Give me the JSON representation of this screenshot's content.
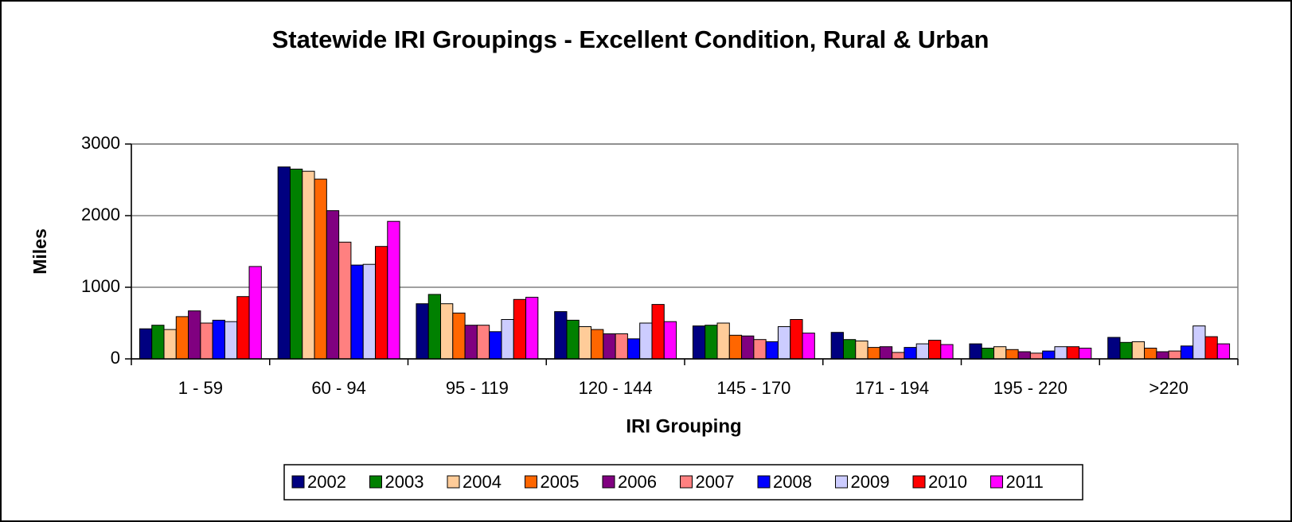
{
  "chart_data": {
    "type": "bar",
    "title": "Statewide IRI Groupings - Excellent Condition, Rural & Urban",
    "x_label": "IRI Grouping",
    "y_label": "Miles",
    "categories": [
      "1 - 59",
      "60 - 94",
      "95 - 119",
      "120 - 144",
      "145 - 170",
      "171 - 194",
      "195 - 220",
      ">220"
    ],
    "series": [
      {
        "name": "2002",
        "color": "#000080",
        "values": [
          420,
          2680,
          770,
          660,
          460,
          370,
          210,
          300
        ]
      },
      {
        "name": "2003",
        "color": "#008000",
        "values": [
          470,
          2650,
          900,
          540,
          470,
          270,
          150,
          230
        ]
      },
      {
        "name": "2004",
        "color": "#ffcc99",
        "values": [
          410,
          2620,
          770,
          450,
          500,
          250,
          170,
          240
        ]
      },
      {
        "name": "2005",
        "color": "#ff6600",
        "values": [
          590,
          2510,
          640,
          410,
          330,
          160,
          130,
          150
        ]
      },
      {
        "name": "2006",
        "color": "#800080",
        "values": [
          670,
          2070,
          470,
          350,
          320,
          170,
          100,
          100
        ]
      },
      {
        "name": "2007",
        "color": "#ff8080",
        "values": [
          500,
          1630,
          470,
          350,
          270,
          90,
          80,
          110
        ]
      },
      {
        "name": "2008",
        "color": "#0000ff",
        "values": [
          540,
          1310,
          380,
          280,
          240,
          160,
          110,
          180
        ]
      },
      {
        "name": "2009",
        "color": "#ccccff",
        "values": [
          520,
          1320,
          550,
          500,
          450,
          210,
          170,
          460
        ]
      },
      {
        "name": "2010",
        "color": "#ff0000",
        "values": [
          870,
          1570,
          830,
          760,
          550,
          260,
          170,
          310
        ]
      },
      {
        "name": "2011",
        "color": "#ff00ff",
        "values": [
          1290,
          1920,
          860,
          520,
          360,
          200,
          150,
          210
        ]
      }
    ],
    "ylim": [
      0,
      3000
    ],
    "yticks": [
      0,
      1000,
      2000,
      3000
    ],
    "grid": true,
    "legend": "bottom"
  }
}
